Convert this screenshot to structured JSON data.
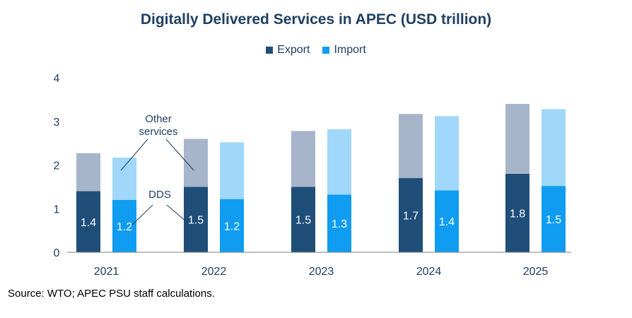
{
  "chart_data": {
    "type": "bar",
    "stacked": true,
    "title": "Digitally Delivered Services in APEC (USD trillion)",
    "categories": [
      "2021",
      "2022",
      "2023",
      "2024",
      "2025"
    ],
    "ylim": [
      0,
      4
    ],
    "yticks": [
      "0",
      "1",
      "2",
      "3",
      "4"
    ],
    "grid": false,
    "legend_position": "top",
    "legend": [
      {
        "label": "Export",
        "color": "#1F4E79"
      },
      {
        "label": "Import",
        "color": "#109CF0"
      }
    ],
    "groups": [
      {
        "name": "Export",
        "series": [
          {
            "name": "DDS",
            "color": "#1F4E79",
            "values": [
              1.4,
              1.5,
              1.5,
              1.7,
              1.8
            ],
            "labels": [
              "1.4",
              "1.5",
              "1.5",
              "1.7",
              "1.8"
            ]
          },
          {
            "name": "Other services",
            "color": "#A6B5CA",
            "values": [
              0.87,
              1.1,
              1.28,
              1.47,
              1.6
            ]
          }
        ]
      },
      {
        "name": "Import",
        "series": [
          {
            "name": "DDS",
            "color": "#109CF0",
            "values": [
              1.2,
              1.22,
              1.32,
              1.42,
              1.52
            ],
            "labels": [
              "1.2",
              "1.2",
              "1.3",
              "1.4",
              "1.5"
            ]
          },
          {
            "name": "Other services",
            "color": "#A0D7FA",
            "values": [
              0.97,
              1.3,
              1.5,
              1.7,
              1.76
            ]
          }
        ]
      }
    ],
    "annotations": [
      {
        "text": [
          "Other",
          "services"
        ],
        "target": "other-services"
      },
      {
        "text": [
          "DDS"
        ],
        "target": "dds"
      }
    ],
    "source": "Source: WTO; APEC PSU staff calculations."
  }
}
